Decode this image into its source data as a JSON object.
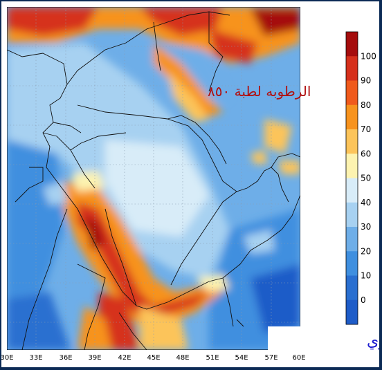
{
  "map": {
    "title_text": "الرطوبه لطبة ٨٥٠",
    "author_text": "حامد البراري",
    "x_ticks": [
      "30E",
      "33E",
      "36E",
      "39E",
      "42E",
      "45E",
      "48E",
      "51E",
      "54E",
      "57E",
      "60E"
    ],
    "colorbar": {
      "labels": [
        "100",
        "90",
        "80",
        "70",
        "60",
        "50",
        "40",
        "30",
        "20",
        "10",
        "0"
      ],
      "colors": [
        "#a50d0d",
        "#d6301c",
        "#f05a1c",
        "#f7931e",
        "#fcc45a",
        "#fdf3b0",
        "#d8ecf8",
        "#a7d1f1",
        "#6eaee8",
        "#3f8fdf",
        "#2a6fd0",
        "#1e5cc8"
      ]
    }
  }
}
